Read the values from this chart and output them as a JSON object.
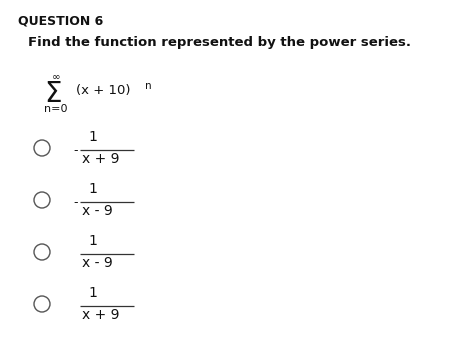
{
  "background_color": "#ffffff",
  "question_label": "QUESTION 6",
  "question_text": "Find the function represented by the power series.",
  "series_upper": "∞",
  "series_sigma": "Σ",
  "series_lower": "n=0",
  "series_term": "(x + 10)",
  "series_exp": "n",
  "options": [
    {
      "negative": true,
      "numerator": "1",
      "denominator": "x + 9"
    },
    {
      "negative": true,
      "numerator": "1",
      "denominator": "x - 9"
    },
    {
      "negative": false,
      "numerator": "1",
      "denominator": "x - 9"
    },
    {
      "negative": false,
      "numerator": "1",
      "denominator": "x + 9"
    }
  ],
  "fig_width": 4.56,
  "fig_height": 3.6,
  "dpi": 100
}
